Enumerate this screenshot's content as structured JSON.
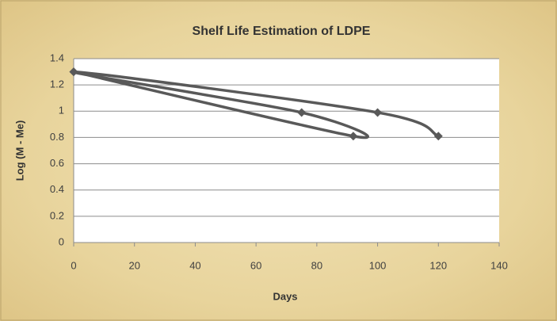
{
  "chart_data": {
    "type": "line",
    "title": "Shelf Life Estimation of LDPE",
    "x_label": "Days",
    "y_label": "Log (M - Me)",
    "x": [
      0,
      92,
      75,
      0,
      100,
      120
    ],
    "series": [
      {
        "name": "LDPE",
        "color": "#595959",
        "values": [
          1.3,
          0.81,
          0.99,
          1.3,
          0.99,
          0.81
        ]
      }
    ],
    "xlim": [
      0,
      140
    ],
    "xticks": [
      0,
      20,
      40,
      60,
      80,
      100,
      120,
      140
    ],
    "ylim": [
      0,
      1.4
    ],
    "yticks": [
      0,
      0.2,
      0.4,
      0.6,
      0.8,
      1,
      1.2,
      1.4
    ],
    "grid": true,
    "smooth": true,
    "legend": false
  }
}
